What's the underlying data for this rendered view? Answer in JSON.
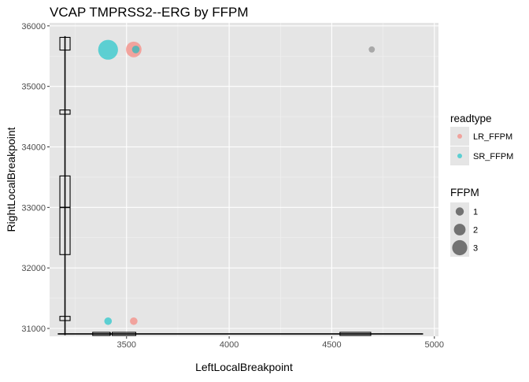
{
  "chart_data": {
    "type": "scatter",
    "title": "VCAP TMPRSS2--ERG by FFPM",
    "xlabel": "LeftLocalBreakpoint",
    "ylabel": "RightLocalBreakpoint",
    "xlim": [
      3125,
      5020
    ],
    "ylim": [
      30870,
      36050
    ],
    "x_ticks": [
      3500,
      4000,
      4500,
      5000
    ],
    "y_ticks": [
      31000,
      32000,
      33000,
      34000,
      35000,
      36000
    ],
    "grid": true,
    "background": "#e5e5e5",
    "series": [
      {
        "name": "LR_FFPM",
        "color": "#f8766d",
        "points": [
          {
            "x": 3535,
            "y": 35610,
            "ffpm": 2.3
          },
          {
            "x": 3535,
            "y": 31120,
            "ffpm": 0.6
          }
        ]
      },
      {
        "name": "SR_FFPM",
        "color": "#00bfc4",
        "points": [
          {
            "x": 3410,
            "y": 35605,
            "ffpm": 3.2
          },
          {
            "x": 3410,
            "y": 31120,
            "ffpm": 0.6
          },
          {
            "x": 3545,
            "y": 35610,
            "ffpm": 0.6
          }
        ]
      },
      {
        "name": "",
        "color": "#7f7f7f",
        "points": [
          {
            "x": 4695,
            "y": 35610,
            "ffpm": 0.3
          }
        ]
      }
    ],
    "boxplot_y": {
      "x_center": 3200,
      "lower_whisker": 30890,
      "q1": 32220,
      "median": 33000,
      "q3": 33520,
      "upper_whisker": 35830,
      "outlier_boxes": [
        [
          31130,
          31200
        ],
        [
          34540,
          34610
        ],
        [
          35600,
          35810
        ]
      ]
    },
    "boxplot_x": {
      "y_center": 30910,
      "lower_whisker": 3165,
      "q1": 3335,
      "median": 3420,
      "q3": 3540,
      "upper_whisker": 4945,
      "dense_segments": [
        [
          3335,
          3420
        ],
        [
          3430,
          3545
        ],
        [
          4540,
          4690
        ]
      ]
    },
    "legend": {
      "placement": "right",
      "color_title": "readtype",
      "color_items": [
        {
          "label": "LR_FFPM",
          "color": "#f8766d"
        },
        {
          "label": "SR_FFPM",
          "color": "#00bfc4"
        }
      ],
      "size_title": "FFPM",
      "size_items": [
        {
          "label": "1",
          "value": 1
        },
        {
          "label": "2",
          "value": 2
        },
        {
          "label": "3",
          "value": 3
        }
      ]
    }
  }
}
